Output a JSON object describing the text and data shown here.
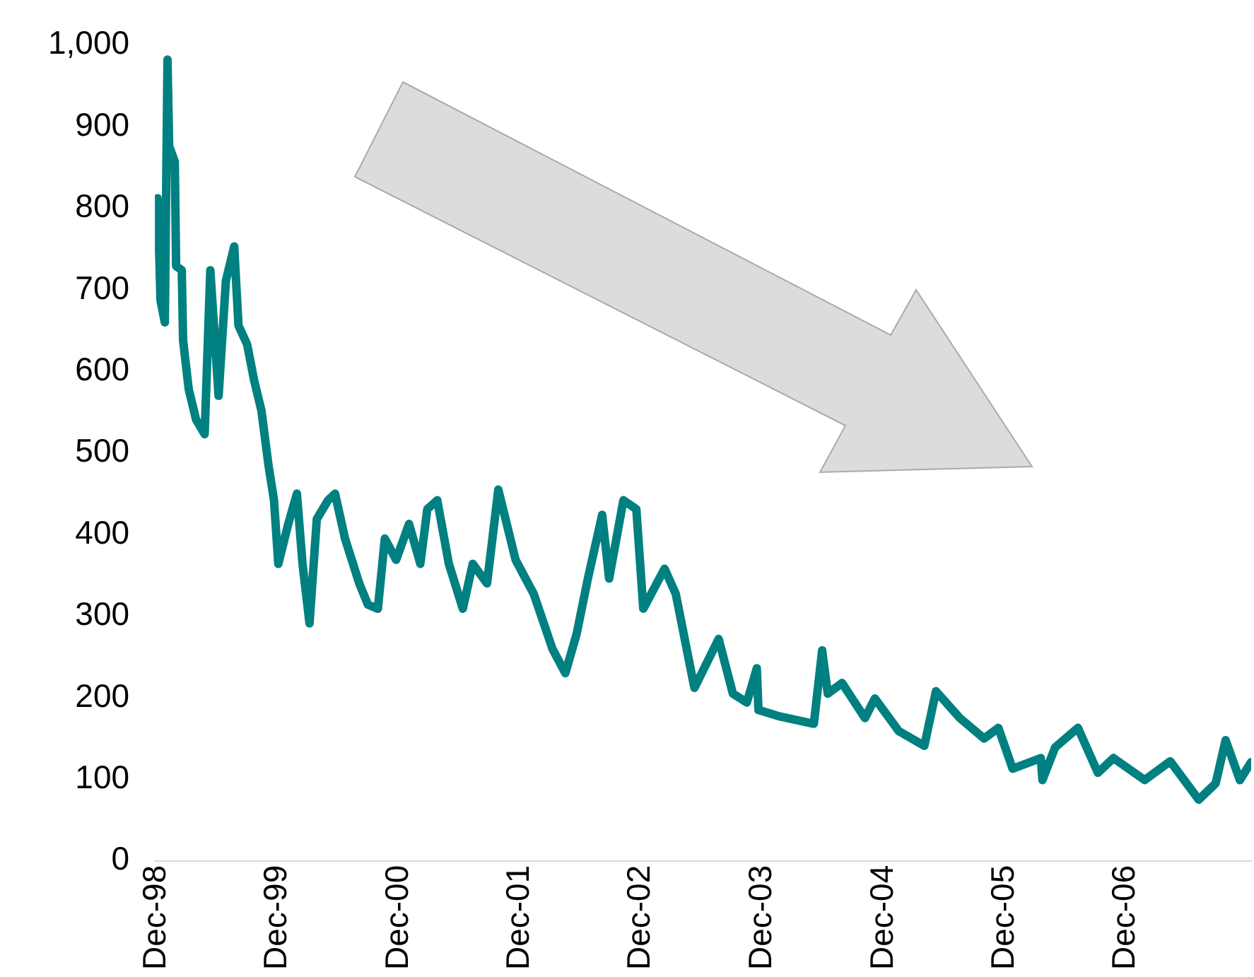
{
  "chart_data": {
    "type": "line",
    "x": [
      "1998-11-27",
      "1998-12-05",
      "1998-12-14",
      "1998-12-27",
      "1999-01-04",
      "1999-01-09",
      "1999-01-26",
      "1999-01-30",
      "1999-02-16",
      "1999-02-20",
      "1999-03-09",
      "1999-03-31",
      "1999-04-26",
      "1999-05-13",
      "1999-06-07",
      "1999-06-29",
      "1999-07-24",
      "1999-08-06",
      "1999-09-01",
      "1999-09-22",
      "1999-10-14",
      "1999-11-04",
      "1999-11-21",
      "1999-12-04",
      "2000-01-03",
      "2000-01-29",
      "2000-02-15",
      "2000-03-07",
      "2000-03-29",
      "2000-05-02",
      "2000-05-23",
      "2000-06-22",
      "2000-08-04",
      "2000-08-30",
      "2000-09-29",
      "2000-10-20",
      "2000-11-23",
      "2001-01-01",
      "2001-02-04",
      "2001-02-25",
      "2001-03-27",
      "2001-05-01",
      "2001-06-12",
      "2001-07-12",
      "2001-08-24",
      "2001-09-27",
      "2001-11-18",
      "2002-01-12",
      "2002-03-09",
      "2002-04-17",
      "2002-05-21",
      "2002-06-24",
      "2002-08-06",
      "2002-08-27",
      "2002-10-09",
      "2002-11-17",
      "2002-12-08",
      "2003-02-10",
      "2003-03-16",
      "2003-05-11",
      "2003-07-23",
      "2003-09-04",
      "2003-10-16",
      "2003-11-15",
      "2003-11-20",
      "2004-01-23",
      "2004-05-05",
      "2004-05-30",
      "2004-06-16",
      "2004-07-29",
      "2004-10-06",
      "2004-11-05",
      "2005-01-16",
      "2005-04-03",
      "2005-05-08",
      "2005-07-19",
      "2005-09-30",
      "2005-11-12",
      "2005-12-25",
      "2006-03-20",
      "2006-03-25",
      "2006-05-02",
      "2006-07-10",
      "2006-09-08",
      "2006-10-25",
      "2007-01-27",
      "2007-04-14",
      "2007-07-09",
      "2007-08-29",
      "2007-09-28",
      "2007-11-10",
      "2007-12-14"
    ],
    "series": [
      {
        "color": "#008080",
        "values": [
          784,
          812,
          687,
          660,
          982,
          876,
          857,
          729,
          724,
          638,
          578,
          541,
          523,
          724,
          570,
          711,
          753,
          656,
          633,
          589,
          552,
          486,
          442,
          364,
          413,
          450,
          364,
          291,
          419,
          442,
          450,
          395,
          340,
          314,
          309,
          395,
          369,
          413,
          364,
          431,
          442,
          364,
          309,
          364,
          340,
          455,
          369,
          327,
          260,
          230,
          278,
          346,
          424,
          346,
          442,
          431,
          309,
          358,
          327,
          212,
          272,
          205,
          194,
          236,
          185,
          177,
          168,
          258,
          205,
          218,
          175,
          199,
          159,
          141,
          208,
          175,
          150,
          163,
          113,
          126,
          99,
          139,
          163,
          108,
          126,
          99,
          122,
          75,
          95,
          148,
          99,
          121
        ]
      }
    ],
    "xlim": [
      "1998-11-27",
      "2007-12-14"
    ],
    "xticks": [
      {
        "value": "1998-12-01",
        "label": "Dec-98"
      },
      {
        "value": "1999-12-01",
        "label": "Dec-99"
      },
      {
        "value": "2000-12-01",
        "label": "Dec-00"
      },
      {
        "value": "2001-12-01",
        "label": "Dec-01"
      },
      {
        "value": "2002-12-01",
        "label": "Dec-02"
      },
      {
        "value": "2003-12-01",
        "label": "Dec-03"
      },
      {
        "value": "2004-12-01",
        "label": "Dec-04"
      },
      {
        "value": "2005-12-01",
        "label": "Dec-05"
      },
      {
        "value": "2006-12-01",
        "label": "Dec-06"
      }
    ],
    "ylim": [
      0,
      1000
    ],
    "yticks": [
      0,
      100,
      200,
      300,
      400,
      500,
      600,
      700,
      800,
      900,
      {
        "value": 1000,
        "label": "1,000"
      }
    ],
    "grid": false,
    "legend": false,
    "marker": "none",
    "line_style": "solid"
  }
}
